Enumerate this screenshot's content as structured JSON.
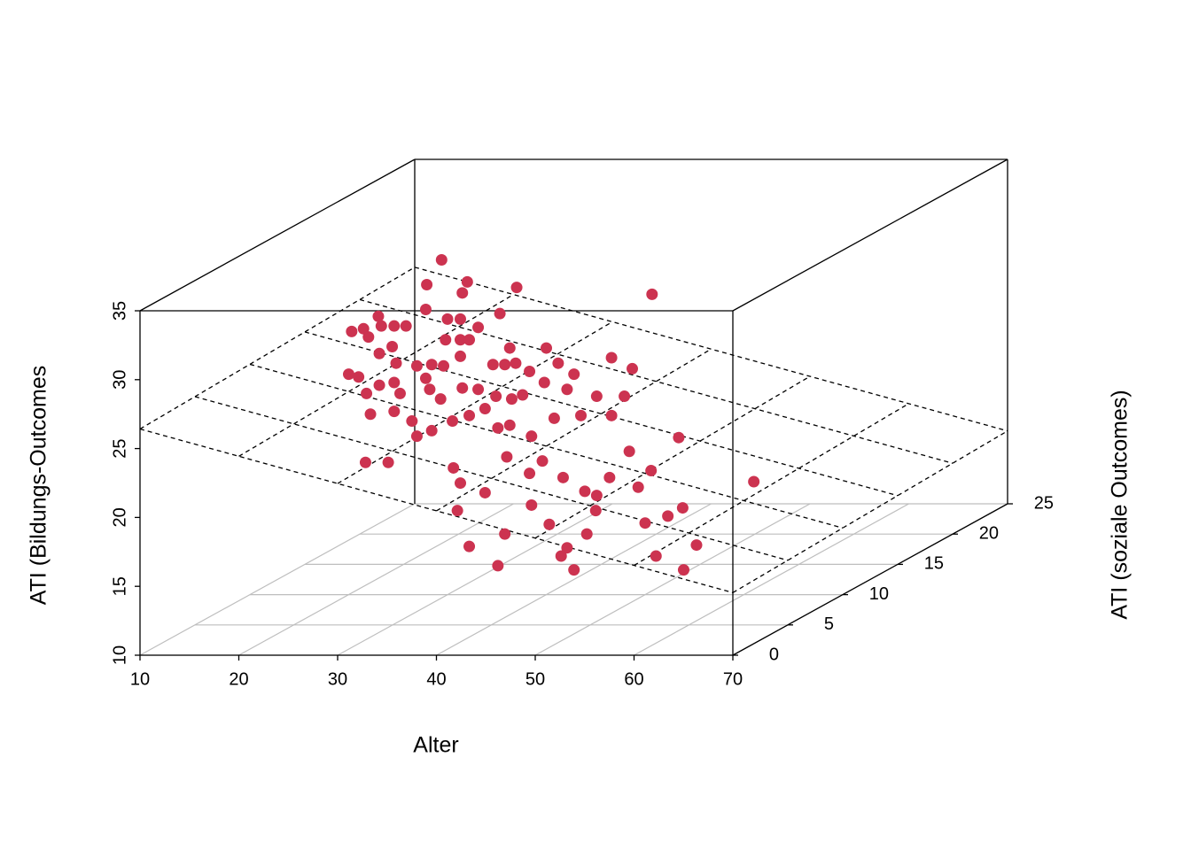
{
  "chart_data": {
    "type": "scatter3d",
    "xlabel": "Alter",
    "ylabel": "ATI (soziale Outcomes)",
    "zlabel": "ATI (Bildungs-Outcomes",
    "color": "#cc3350",
    "xlim": [
      10,
      70
    ],
    "xticks": [
      10,
      20,
      30,
      40,
      50,
      60,
      70
    ],
    "ylim": [
      0,
      25
    ],
    "yticks": [
      0,
      5,
      10,
      15,
      20,
      25
    ],
    "zlim": [
      10,
      35
    ],
    "zticks": [
      10,
      15,
      20,
      25,
      30,
      35
    ],
    "plane": {
      "intercept": 28.4,
      "slope_x": -0.198,
      "slope_y": 0.03
    },
    "x": [
      29.4,
      27.9,
      31.5,
      32.0,
      37.0,
      50.7,
      27.8,
      30.0,
      31.3,
      35.3,
      23.0,
      20.3,
      21.5,
      22.0,
      23.3,
      24.6,
      25.8,
      33.1,
      29.8,
      31.3,
      32.2,
      36.3,
      40.0,
      46.6,
      48.7,
      23.1,
      24.4,
      24.8,
      20.0,
      21.0,
      26.9,
      28.4,
      29.6,
      31.3,
      34.6,
      35.8,
      36.9,
      38.3,
      41.2,
      42.8,
      21.8,
      23.1,
      24.6,
      25.2,
      27.8,
      28.2,
      29.3,
      31.5,
      33.1,
      34.9,
      36.5,
      37.6,
      39.8,
      42.1,
      45.1,
      47.9,
      22.2,
      24.6,
      26.4,
      26.9,
      28.4,
      30.5,
      32.2,
      33.8,
      35.1,
      36.3,
      38.5,
      40.8,
      43.5,
      46.6,
      21.7,
      24.0,
      30.6,
      31.3,
      33.8,
      36.0,
      38.3,
      39.6,
      41.7,
      43.9,
      46.4,
      49.3,
      50.6,
      53.4,
      61.0,
      31.0,
      38.5,
      45.0,
      40.3,
      50.0,
      53.8,
      32.2,
      35.8,
      42.1,
      44.1,
      41.5,
      35.1,
      42.8,
      51.1,
      55.2,
      53.9,
      52.3,
      45.1,
      48.4
    ],
    "y": [
      10,
      10,
      10,
      10,
      10,
      10,
      10,
      10,
      10,
      10,
      10,
      10,
      10,
      10,
      10,
      10,
      10,
      10,
      10,
      10,
      10,
      10,
      10,
      10,
      10,
      10,
      10,
      10,
      10,
      10,
      10,
      10,
      10,
      10,
      10,
      10,
      10,
      10,
      10,
      10,
      10,
      10,
      10,
      10,
      10,
      10,
      10,
      10,
      10,
      10,
      10,
      10,
      10,
      10,
      10,
      10,
      10,
      10,
      10,
      10,
      10,
      10,
      10,
      10,
      10,
      10,
      10,
      10,
      10,
      10,
      10,
      10,
      10,
      10,
      10,
      10,
      10,
      10,
      10,
      10,
      10,
      10,
      10,
      10,
      10,
      10,
      10,
      10,
      10,
      10,
      10,
      10,
      10,
      10,
      10,
      10,
      10,
      10,
      10,
      10,
      10,
      10,
      10,
      10
    ],
    "z": [
      34.3,
      32.5,
      31.9,
      32.7,
      32.3,
      31.8,
      30.7,
      30.0,
      30.0,
      30.4,
      30.2,
      29.1,
      29.3,
      28.7,
      29.5,
      29.5,
      29.5,
      29.4,
      28.5,
      28.5,
      28.5,
      27.9,
      27.9,
      27.2,
      26.4,
      27.5,
      28.0,
      26.8,
      26.0,
      25.8,
      26.6,
      26.7,
      26.6,
      27.3,
      26.7,
      26.7,
      26.8,
      26.2,
      26.8,
      26.0,
      24.6,
      25.2,
      25.4,
      24.6,
      25.7,
      24.9,
      24.2,
      25.0,
      24.9,
      24.4,
      24.2,
      24.5,
      25.4,
      24.9,
      24.4,
      24.4,
      23.1,
      23.3,
      22.6,
      21.5,
      21.9,
      22.6,
      23.0,
      23.5,
      22.1,
      22.3,
      21.5,
      22.8,
      23.0,
      23.0,
      19.6,
      19.6,
      19.2,
      18.1,
      17.4,
      20.0,
      18.8,
      19.7,
      18.5,
      17.5,
      18.5,
      17.8,
      19.0,
      21.4,
      18.2,
      16.1,
      16.5,
      16.1,
      15.1,
      15.2,
      16.3,
      13.5,
      14.4,
      13.4,
      14.4,
      12.8,
      12.1,
      11.8,
      12.8,
      13.6,
      11.8,
      15.7,
      17.2,
      20.4
    ]
  }
}
